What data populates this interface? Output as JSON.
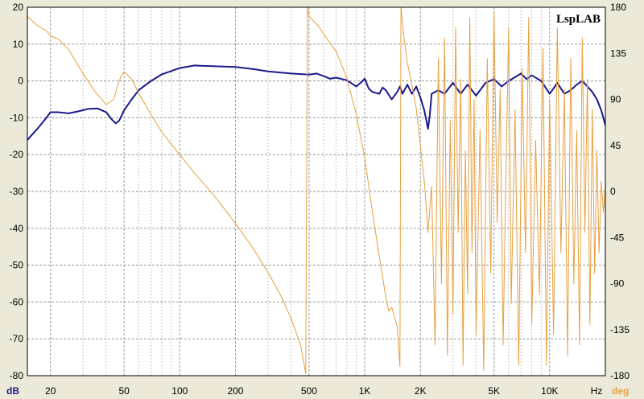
{
  "chart_data": {
    "type": "line",
    "watermark": "LspLAB",
    "x_scale": "log",
    "xlim": [
      15,
      20000
    ],
    "x_ticks": [
      {
        "value": 20,
        "label": "20"
      },
      {
        "value": 50,
        "label": "50"
      },
      {
        "value": 100,
        "label": "100"
      },
      {
        "value": 200,
        "label": "200"
      },
      {
        "value": 500,
        "label": "500"
      },
      {
        "value": 1000,
        "label": "1K"
      },
      {
        "value": 2000,
        "label": "2K"
      },
      {
        "value": 5000,
        "label": "5K"
      },
      {
        "value": 10000,
        "label": "10K"
      }
    ],
    "x_unit": "Hz",
    "y_left": {
      "unit": "dB",
      "lim": [
        -80,
        20
      ],
      "ticks": [
        20,
        10,
        0,
        -10,
        -20,
        -30,
        -40,
        -50,
        -60,
        -70,
        -80
      ],
      "color": "#1a1a8c"
    },
    "y_right": {
      "unit": "deg",
      "lim": [
        -180,
        180
      ],
      "ticks": [
        180,
        135,
        90,
        45,
        0,
        -45,
        -90,
        -135,
        -180
      ],
      "color": "#e8a040"
    },
    "grid": true,
    "series": [
      {
        "axis": "left",
        "color": "#1a1a8c",
        "points": [
          [
            15,
            -16
          ],
          [
            17,
            -13
          ],
          [
            19,
            -10
          ],
          [
            20,
            -8.5
          ],
          [
            22,
            -8.5
          ],
          [
            25,
            -8.8
          ],
          [
            28,
            -8.3
          ],
          [
            32,
            -7.6
          ],
          [
            36,
            -7.5
          ],
          [
            40,
            -8.5
          ],
          [
            43,
            -10.5
          ],
          [
            45,
            -11.5
          ],
          [
            47,
            -10.8
          ],
          [
            50,
            -8
          ],
          [
            55,
            -5
          ],
          [
            60,
            -2.5
          ],
          [
            70,
            0
          ],
          [
            80,
            1.8
          ],
          [
            100,
            3.5
          ],
          [
            120,
            4.2
          ],
          [
            150,
            4.0
          ],
          [
            200,
            3.8
          ],
          [
            250,
            3.2
          ],
          [
            300,
            2.6
          ],
          [
            400,
            2.0
          ],
          [
            500,
            1.7
          ],
          [
            550,
            2.0
          ],
          [
            600,
            1.3
          ],
          [
            650,
            0.6
          ],
          [
            700,
            0.9
          ],
          [
            800,
            0.2
          ],
          [
            900,
            -1.5
          ],
          [
            950,
            -0.5
          ],
          [
            1000,
            0.6
          ],
          [
            1050,
            -2.0
          ],
          [
            1100,
            -3.0
          ],
          [
            1200,
            -3.5
          ],
          [
            1250,
            -1.8
          ],
          [
            1300,
            -2.5
          ],
          [
            1400,
            -5.0
          ],
          [
            1500,
            -3.0
          ],
          [
            1550,
            -1.5
          ],
          [
            1600,
            -3.5
          ],
          [
            1700,
            -1.0
          ],
          [
            1800,
            -3.5
          ],
          [
            1900,
            -1.5
          ],
          [
            2000,
            -4.5
          ],
          [
            2100,
            -8.0
          ],
          [
            2200,
            -13.0
          ],
          [
            2250,
            -9.0
          ],
          [
            2300,
            -3.5
          ],
          [
            2500,
            -2.5
          ],
          [
            2700,
            -3.5
          ],
          [
            3000,
            -0.5
          ],
          [
            3300,
            -3.5
          ],
          [
            3600,
            -1.0
          ],
          [
            4000,
            -4.0
          ],
          [
            4500,
            -0.5
          ],
          [
            5000,
            0.5
          ],
          [
            5500,
            -1.5
          ],
          [
            6000,
            0.0
          ],
          [
            6500,
            1.0
          ],
          [
            7000,
            2.0
          ],
          [
            7500,
            0.5
          ],
          [
            8000,
            1.5
          ],
          [
            9000,
            0.0
          ],
          [
            10000,
            -3.5
          ],
          [
            10500,
            -2.0
          ],
          [
            11000,
            -0.5
          ],
          [
            12000,
            -3.5
          ],
          [
            13000,
            -2.5
          ],
          [
            14000,
            -1.0
          ],
          [
            15000,
            0.0
          ],
          [
            16000,
            -1.5
          ],
          [
            17000,
            -3.0
          ],
          [
            18000,
            -5.0
          ],
          [
            19000,
            -8.0
          ],
          [
            20000,
            -12.0
          ]
        ]
      },
      {
        "axis": "right",
        "color": "#e8a040",
        "points": [
          [
            15,
            171
          ],
          [
            17,
            162
          ],
          [
            19,
            157
          ],
          [
            20,
            152
          ],
          [
            22,
            149
          ],
          [
            25,
            139
          ],
          [
            30,
            115
          ],
          [
            35,
            97
          ],
          [
            40,
            85
          ],
          [
            44,
            90
          ],
          [
            46,
            103
          ],
          [
            48,
            112
          ],
          [
            50,
            117
          ],
          [
            55,
            110
          ],
          [
            60,
            96
          ],
          [
            70,
            75
          ],
          [
            80,
            58
          ],
          [
            90,
            46
          ],
          [
            100,
            36
          ],
          [
            120,
            18
          ],
          [
            150,
            -2
          ],
          [
            200,
            -31
          ],
          [
            250,
            -56
          ],
          [
            300,
            -79
          ],
          [
            350,
            -101
          ],
          [
            400,
            -124
          ],
          [
            450,
            -150
          ],
          [
            480,
            -178
          ],
          [
            490,
            180
          ],
          [
            500,
            171
          ],
          [
            560,
            162
          ],
          [
            620,
            150
          ],
          [
            700,
            137
          ],
          [
            800,
            111
          ],
          [
            900,
            75
          ],
          [
            1000,
            33
          ],
          [
            1100,
            -20
          ],
          [
            1200,
            -64
          ],
          [
            1300,
            -103
          ],
          [
            1350,
            -117
          ],
          [
            1400,
            -113
          ],
          [
            1500,
            -132
          ],
          [
            1550,
            -171
          ],
          [
            1570,
            180
          ],
          [
            1620,
            154
          ],
          [
            1700,
            126
          ],
          [
            1800,
            104
          ],
          [
            1900,
            81
          ],
          [
            2000,
            45
          ],
          [
            2100,
            10
          ],
          [
            2200,
            -40
          ],
          [
            2300,
            5
          ],
          [
            2400,
            -150
          ],
          [
            2500,
            130
          ],
          [
            2600,
            -90
          ],
          [
            2700,
            150
          ],
          [
            2800,
            -160
          ],
          [
            2900,
            70
          ],
          [
            3000,
            -120
          ],
          [
            3100,
            160
          ],
          [
            3200,
            -40
          ],
          [
            3300,
            110
          ],
          [
            3400,
            -170
          ],
          [
            3500,
            40
          ],
          [
            3600,
            -100
          ],
          [
            3700,
            170
          ],
          [
            3800,
            -60
          ],
          [
            3900,
            90
          ],
          [
            4000,
            -140
          ],
          [
            4200,
            60
          ],
          [
            4400,
            -175
          ],
          [
            4600,
            130
          ],
          [
            4800,
            -80
          ],
          [
            5000,
            175
          ],
          [
            5200,
            -30
          ],
          [
            5400,
            100
          ],
          [
            5600,
            -150
          ],
          [
            5800,
            20
          ],
          [
            6000,
            160
          ],
          [
            6200,
            -110
          ],
          [
            6500,
            80
          ],
          [
            6800,
            -170
          ],
          [
            7100,
            120
          ],
          [
            7400,
            -60
          ],
          [
            7700,
            170
          ],
          [
            8000,
            -130
          ],
          [
            8400,
            50
          ],
          [
            8800,
            -100
          ],
          [
            9200,
            140
          ],
          [
            9600,
            -170
          ],
          [
            10000,
            90
          ],
          [
            10500,
            -140
          ],
          [
            11000,
            160
          ],
          [
            11500,
            -60
          ],
          [
            12000,
            100
          ],
          [
            12500,
            -160
          ],
          [
            13000,
            130
          ],
          [
            13500,
            -90
          ],
          [
            14000,
            60
          ],
          [
            14500,
            -150
          ],
          [
            15000,
            150
          ],
          [
            15500,
            -40
          ],
          [
            16000,
            110
          ],
          [
            16500,
            -130
          ],
          [
            17000,
            80
          ],
          [
            17500,
            -80
          ],
          [
            18000,
            40
          ],
          [
            18500,
            -60
          ],
          [
            19000,
            10
          ],
          [
            19500,
            -20
          ],
          [
            20000,
            5
          ]
        ]
      }
    ]
  }
}
